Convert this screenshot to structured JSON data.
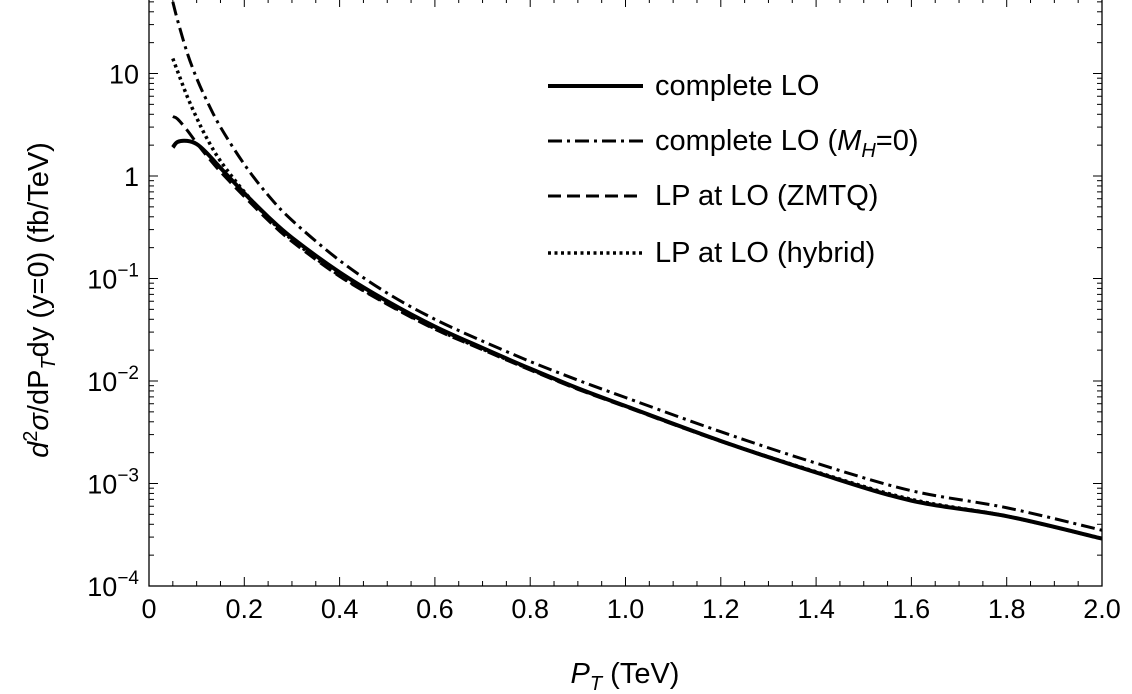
{
  "chart_data": {
    "type": "line",
    "xlabel": {
      "main": "P",
      "sub": "T",
      "unit": " (TeV)"
    },
    "ylabel": {
      "d": "d",
      "sup2": "2",
      "sigma": "σ",
      "dp": "/dP",
      "subT": "T",
      "rest": "dy (y=0) (fb/TeV)"
    },
    "xlim": [
      0,
      2.0
    ],
    "ylim": [
      0.0001,
      50
    ],
    "yscale": "log",
    "x_ticks": [
      {
        "v": 0,
        "label": "0"
      },
      {
        "v": 0.2,
        "label": "0.2"
      },
      {
        "v": 0.4,
        "label": "0.4"
      },
      {
        "v": 0.6,
        "label": "0.6"
      },
      {
        "v": 0.8,
        "label": "0.8"
      },
      {
        "v": 1.0,
        "label": "1.0"
      },
      {
        "v": 1.2,
        "label": "1.2"
      },
      {
        "v": 1.4,
        "label": "1.4"
      },
      {
        "v": 1.6,
        "label": "1.6"
      },
      {
        "v": 1.8,
        "label": "1.8"
      },
      {
        "v": 2.0,
        "label": "2.0"
      }
    ],
    "y_ticks": [
      {
        "v": 10,
        "base": "10",
        "exp": ""
      },
      {
        "v": 1,
        "base": "1",
        "exp": ""
      },
      {
        "v": 0.1,
        "base": "10",
        "exp": "−1"
      },
      {
        "v": 0.01,
        "base": "10",
        "exp": "−2"
      },
      {
        "v": 0.001,
        "base": "10",
        "exp": "−3"
      },
      {
        "v": 0.0001,
        "base": "10",
        "exp": "−4"
      }
    ],
    "grid": false,
    "legend_position": "top-right",
    "series": [
      {
        "name": "complete LO",
        "style": "solid",
        "x": [
          0.05,
          0.06,
          0.08,
          0.1,
          0.12,
          0.15,
          0.2,
          0.25,
          0.3,
          0.4,
          0.5,
          0.6,
          0.7,
          0.8,
          0.9,
          1.0,
          1.2,
          1.4,
          1.6,
          1.8,
          2.0
        ],
        "y": [
          1.9,
          2.15,
          2.2,
          2.05,
          1.7,
          1.2,
          0.68,
          0.4,
          0.25,
          0.115,
          0.06,
          0.034,
          0.021,
          0.0132,
          0.0085,
          0.0057,
          0.0026,
          0.00128,
          0.00068,
          0.00048,
          0.00029
        ]
      },
      {
        "name": "complete LO (M_H=0)",
        "name_parts": {
          "pre": "complete LO (",
          "M": "M",
          "sub": "H",
          "post": "=0)"
        },
        "style": "dashdot",
        "x": [
          0.05,
          0.06,
          0.08,
          0.1,
          0.12,
          0.15,
          0.2,
          0.25,
          0.3,
          0.4,
          0.5,
          0.6,
          0.7,
          0.8,
          0.9,
          1.0,
          1.2,
          1.4,
          1.6,
          1.8,
          2.0
        ],
        "y": [
          50,
          33,
          16,
          9.0,
          5.6,
          3.0,
          1.3,
          0.65,
          0.37,
          0.15,
          0.072,
          0.04,
          0.0245,
          0.0155,
          0.0102,
          0.0069,
          0.0032,
          0.00158,
          0.00085,
          0.00058,
          0.00035
        ]
      },
      {
        "name": "LP at LO (ZMTQ)",
        "style": "dashed",
        "x": [
          0.05,
          0.06,
          0.08,
          0.1,
          0.12,
          0.15,
          0.2,
          0.25,
          0.3,
          0.4,
          0.5,
          0.6,
          0.7,
          0.8,
          0.9,
          1.0,
          1.2,
          1.4,
          1.6,
          1.8,
          2.0
        ],
        "y": [
          3.8,
          3.6,
          2.8,
          2.1,
          1.6,
          1.1,
          0.63,
          0.37,
          0.23,
          0.105,
          0.056,
          0.032,
          0.0202,
          0.0128,
          0.0083,
          0.0056,
          0.00257,
          0.00128,
          0.00069,
          0.00048,
          0.00029
        ]
      },
      {
        "name": "LP at LO (hybrid)",
        "style": "dotted",
        "x": [
          0.05,
          0.06,
          0.08,
          0.1,
          0.12,
          0.15,
          0.2,
          0.25,
          0.3,
          0.4,
          0.5,
          0.6,
          0.7,
          0.8,
          0.9,
          1.0,
          1.2,
          1.4,
          1.6,
          1.8,
          2.0
        ],
        "y": [
          14,
          10.5,
          6.0,
          3.7,
          2.4,
          1.4,
          0.7,
          0.39,
          0.24,
          0.107,
          0.057,
          0.0325,
          0.0205,
          0.013,
          0.0084,
          0.0057,
          0.0026,
          0.0013,
          0.0007,
          0.00048,
          0.00029
        ]
      }
    ]
  }
}
